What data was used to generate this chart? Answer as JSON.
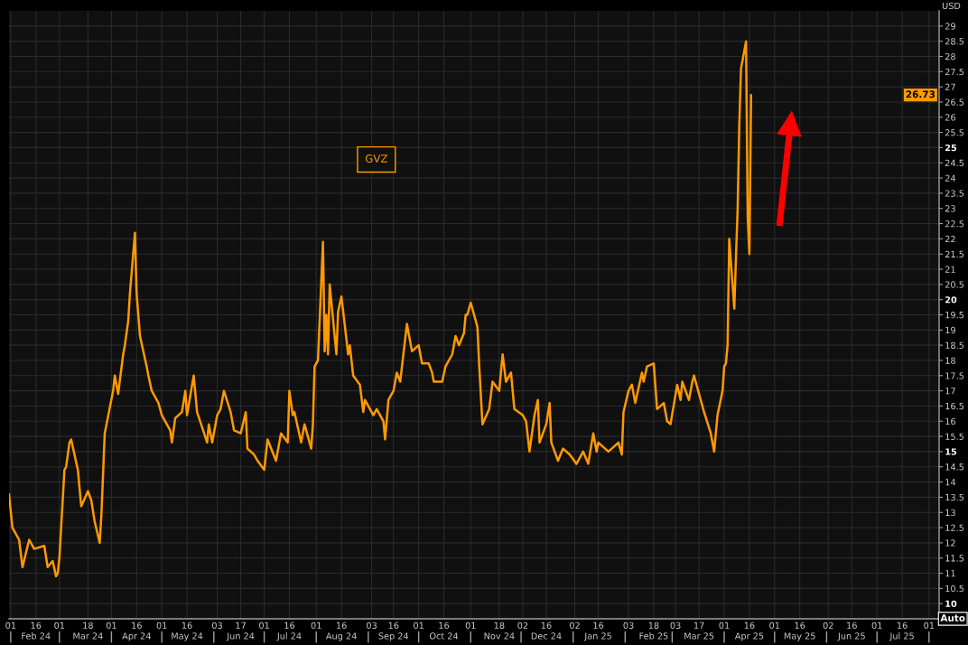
{
  "chart_data": {
    "type": "line",
    "ylabel": "USD",
    "annotations": [
      {
        "text": "26.73",
        "y": 26.73
      },
      "Auto"
    ],
    "x": [
      "2024-01-31",
      "2024-02-02",
      "2024-02-06",
      "2024-02-08",
      "2024-02-12",
      "2024-02-15",
      "2024-02-21",
      "2024-02-23",
      "2024-02-26",
      "2024-02-28",
      "2024-02-29",
      "2024-03-01",
      "2024-03-04",
      "2024-03-05",
      "2024-03-07",
      "2024-03-08",
      "2024-03-12",
      "2024-03-14",
      "2024-03-18",
      "2024-03-20",
      "2024-03-22",
      "2024-03-25",
      "2024-03-26",
      "2024-03-28",
      "2024-04-02",
      "2024-04-03",
      "2024-04-05",
      "2024-04-08",
      "2024-04-09",
      "2024-04-11",
      "2024-04-12",
      "2024-04-15",
      "2024-04-16",
      "2024-04-18",
      "2024-04-22",
      "2024-04-23",
      "2024-04-25",
      "2024-04-29",
      "2024-05-01",
      "2024-05-06",
      "2024-05-07",
      "2024-05-09",
      "2024-05-13",
      "2024-05-15",
      "2024-05-16",
      "2024-05-20",
      "2024-05-22",
      "2024-05-28",
      "2024-05-29",
      "2024-05-31",
      "2024-06-03",
      "2024-06-05",
      "2024-06-07",
      "2024-06-11",
      "2024-06-13",
      "2024-06-17",
      "2024-06-20",
      "2024-06-21",
      "2024-06-25",
      "2024-06-27",
      "2024-07-01",
      "2024-07-03",
      "2024-07-08",
      "2024-07-09",
      "2024-07-11",
      "2024-07-15",
      "2024-07-16",
      "2024-07-18",
      "2024-07-19",
      "2024-07-23",
      "2024-07-25",
      "2024-07-29",
      "2024-07-30",
      "2024-07-31",
      "2024-08-02",
      "2024-08-05",
      "2024-08-06",
      "2024-08-07",
      "2024-08-08",
      "2024-08-09",
      "2024-08-13",
      "2024-08-14",
      "2024-08-16",
      "2024-08-20",
      "2024-08-21",
      "2024-08-23",
      "2024-08-27",
      "2024-08-29",
      "2024-08-30",
      "2024-09-04",
      "2024-09-06",
      "2024-09-10",
      "2024-09-11",
      "2024-09-13",
      "2024-09-16",
      "2024-09-18",
      "2024-09-20",
      "2024-09-24",
      "2024-09-25",
      "2024-09-27",
      "2024-10-01",
      "2024-10-03",
      "2024-10-07",
      "2024-10-09",
      "2024-10-10",
      "2024-10-15",
      "2024-10-17",
      "2024-10-21",
      "2024-10-23",
      "2024-10-25",
      "2024-10-28",
      "2024-10-29",
      "2024-10-30",
      "2024-11-01",
      "2024-11-05",
      "2024-11-06",
      "2024-11-08",
      "2024-11-12",
      "2024-11-14",
      "2024-11-18",
      "2024-11-20",
      "2024-11-22",
      "2024-11-25",
      "2024-11-27",
      "2024-12-02",
      "2024-12-04",
      "2024-12-06",
      "2024-12-09",
      "2024-12-11",
      "2024-12-12",
      "2024-12-16",
      "2024-12-18",
      "2024-12-19",
      "2024-12-23",
      "2024-12-26",
      "2024-12-30",
      "2025-01-03",
      "2025-01-07",
      "2025-01-10",
      "2025-01-13",
      "2025-01-15",
      "2025-01-16",
      "2025-01-22",
      "2025-01-24",
      "2025-01-28",
      "2025-01-30",
      "2025-01-31",
      "2025-02-03",
      "2025-02-05",
      "2025-02-07",
      "2025-02-11",
      "2025-02-12",
      "2025-02-14",
      "2025-02-18",
      "2025-02-20",
      "2025-02-24",
      "2025-02-26",
      "2025-02-28",
      "2025-03-04",
      "2025-03-06",
      "2025-03-07",
      "2025-03-11",
      "2025-03-13",
      "2025-03-14",
      "2025-03-18",
      "2025-03-20",
      "2025-03-24",
      "2025-03-26",
      "2025-03-28",
      "2025-03-31",
      "2025-04-01",
      "2025-04-02",
      "2025-04-03",
      "2025-04-04",
      "2025-04-07",
      "2025-04-08",
      "2025-04-09",
      "2025-04-10",
      "2025-04-11",
      "2025-04-14",
      "2025-04-15",
      "2025-04-16",
      "2025-04-17"
    ],
    "series": [
      {
        "name": "GVZ",
        "color": "#ff9900",
        "values": [
          13.6,
          12.5,
          12.1,
          11.2,
          12.1,
          11.8,
          11.9,
          11.2,
          11.4,
          10.9,
          11.0,
          11.5,
          14.4,
          14.5,
          15.3,
          15.4,
          14.4,
          13.2,
          13.7,
          13.4,
          12.7,
          12.0,
          12.9,
          15.6,
          17.0,
          17.5,
          16.9,
          18.2,
          18.5,
          19.3,
          20.2,
          22.2,
          20.2,
          18.8,
          17.8,
          17.5,
          17.0,
          16.6,
          16.2,
          15.7,
          15.3,
          16.1,
          16.3,
          17.0,
          16.2,
          17.5,
          16.3,
          15.3,
          15.9,
          15.3,
          16.2,
          16.4,
          17.0,
          16.3,
          15.7,
          15.6,
          16.3,
          15.1,
          14.9,
          14.7,
          14.4,
          15.4,
          14.7,
          15.0,
          15.6,
          15.3,
          17.0,
          16.2,
          16.3,
          15.3,
          15.9,
          15.1,
          15.9,
          17.8,
          18.0,
          21.9,
          18.3,
          19.5,
          18.2,
          20.5,
          18.2,
          19.6,
          20.1,
          18.2,
          18.5,
          17.5,
          17.2,
          16.3,
          16.7,
          16.2,
          16.4,
          16.0,
          15.4,
          16.7,
          17.0,
          17.6,
          17.3,
          19.2,
          18.9,
          18.3,
          18.5,
          17.9,
          17.9,
          17.6,
          17.3,
          17.3,
          17.8,
          18.2,
          18.8,
          18.5,
          18.9,
          19.5,
          19.5,
          19.9,
          19.1,
          17.9,
          15.9,
          16.4,
          17.3,
          17.0,
          18.2,
          17.3,
          17.6,
          16.4,
          16.2,
          16.0,
          15.0,
          16.2,
          16.7,
          15.3,
          15.9,
          16.6,
          15.3,
          14.7,
          15.1,
          14.9,
          14.6,
          15.0,
          14.6,
          15.6,
          15.0,
          15.3,
          15.0,
          15.1,
          15.3,
          14.9,
          16.3,
          17.0,
          17.2,
          16.6,
          17.6,
          17.3,
          17.8,
          17.9,
          16.4,
          16.6,
          16.0,
          15.9,
          17.2,
          16.7,
          17.3,
          16.7,
          17.3,
          17.5,
          16.7,
          16.3,
          15.6,
          15.0,
          16.2,
          17.0,
          17.8,
          17.9,
          18.5,
          22.0,
          19.7,
          21.4,
          23.0,
          25.8,
          27.6,
          28.5,
          22.7,
          21.5,
          26.73
        ]
      }
    ],
    "xlim": [
      "2024-01-31",
      "2025-08-07"
    ],
    "xticks": [
      {
        "value": "2024-02-01",
        "label": "01"
      },
      {
        "value": "2024-02-16",
        "label": "16\nFeb 24"
      },
      {
        "value": "2024-03-01",
        "label": "01"
      },
      {
        "value": "2024-03-18",
        "label": "18\nMar 24"
      },
      {
        "value": "2024-04-01",
        "label": "01"
      },
      {
        "value": "2024-04-16",
        "label": "16\nApr 24"
      },
      {
        "value": "2024-05-01",
        "label": "01"
      },
      {
        "value": "2024-05-16",
        "label": "16\nMay 24"
      },
      {
        "value": "2024-06-03",
        "label": "03"
      },
      {
        "value": "2024-06-17",
        "label": "17\nJun 24"
      },
      {
        "value": "2024-07-01",
        "label": "01"
      },
      {
        "value": "2024-07-16",
        "label": "16\nJul 24"
      },
      {
        "value": "2024-08-01",
        "label": "01"
      },
      {
        "value": "2024-08-16",
        "label": "16\nAug 24"
      },
      {
        "value": "2024-09-03",
        "label": "03"
      },
      {
        "value": "2024-09-16",
        "label": "16\nSep 24"
      },
      {
        "value": "2024-10-01",
        "label": "01"
      },
      {
        "value": "2024-10-16",
        "label": "16\nOct 24"
      },
      {
        "value": "2024-11-01",
        "label": "01"
      },
      {
        "value": "2024-11-18",
        "label": "18\nNov 24"
      },
      {
        "value": "2024-12-02",
        "label": "02"
      },
      {
        "value": "2024-12-16",
        "label": "16\nDec 24"
      },
      {
        "value": "2025-01-02",
        "label": "02"
      },
      {
        "value": "2025-01-16",
        "label": "16\nJan 25"
      },
      {
        "value": "2025-02-03",
        "label": "03"
      },
      {
        "value": "2025-02-18",
        "label": "18\nFeb 25"
      },
      {
        "value": "2025-03-03",
        "label": "03"
      },
      {
        "value": "2025-03-17",
        "label": "17\nMar 25"
      },
      {
        "value": "2025-04-01",
        "label": "01"
      },
      {
        "value": "2025-04-16",
        "label": "16\nApr 25"
      },
      {
        "value": "2025-05-01",
        "label": "01"
      },
      {
        "value": "2025-05-16",
        "label": "16\nMay 25"
      },
      {
        "value": "2025-06-02",
        "label": "02"
      },
      {
        "value": "2025-06-16",
        "label": "16\nJun 25"
      },
      {
        "value": "2025-07-01",
        "label": "01"
      },
      {
        "value": "2025-07-16",
        "label": "16\nJul 25"
      },
      {
        "value": "2025-08-01",
        "label": "01"
      }
    ],
    "ylim": [
      9.5,
      29.5
    ],
    "yticks": [
      10,
      10.5,
      11,
      11.5,
      12,
      12.5,
      13,
      13.5,
      14,
      14.5,
      15,
      15.5,
      16,
      16.5,
      17,
      17.5,
      18,
      18.5,
      19,
      19.5,
      20,
      20.5,
      21,
      21.5,
      22,
      22.5,
      23,
      23.5,
      24,
      24.5,
      25,
      25.5,
      26,
      26.5,
      27,
      27.5,
      28,
      28.5,
      29
    ],
    "grid": true,
    "legend": "top",
    "line_style": "solid"
  }
}
